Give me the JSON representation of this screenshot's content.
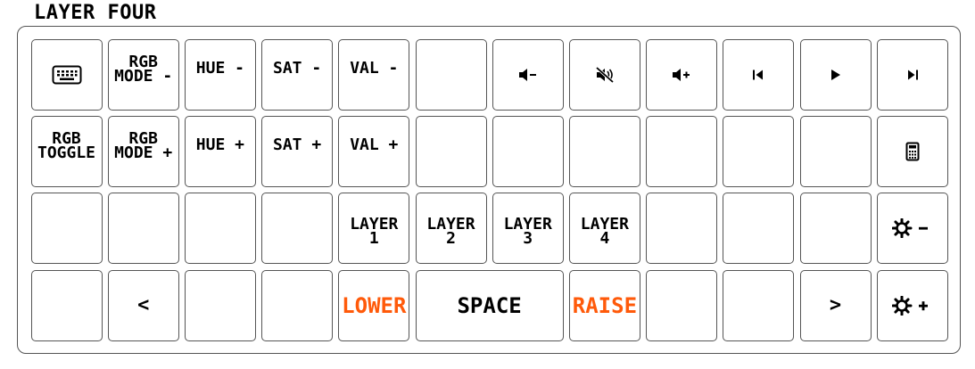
{
  "title": "LAYER FOUR",
  "colors": {
    "accent": "#ff5a0a",
    "border": "#555555"
  },
  "rows": [
    [
      {
        "name": "key-keyboard",
        "icon": "keyboard-icon"
      },
      {
        "name": "key-rgb-mode-minus",
        "label": "RGB\nMODE -",
        "style": "stack"
      },
      {
        "name": "key-hue-minus",
        "label": "HUE -",
        "style": "tl"
      },
      {
        "name": "key-sat-minus",
        "label": "SAT -",
        "style": "tl"
      },
      {
        "name": "key-val-minus",
        "label": "VAL -",
        "style": "tl"
      },
      {
        "name": "key-blank"
      },
      {
        "name": "key-volume-down",
        "icon": "volume-down-icon"
      },
      {
        "name": "key-mute",
        "icon": "mute-icon"
      },
      {
        "name": "key-volume-up",
        "icon": "volume-up-icon"
      },
      {
        "name": "key-previous-track",
        "icon": "previous-track-icon"
      },
      {
        "name": "key-play",
        "icon": "play-icon"
      },
      {
        "name": "key-next-track",
        "icon": "next-track-icon"
      }
    ],
    [
      {
        "name": "key-rgb-toggle",
        "label": "RGB\nTOGGLE",
        "style": "stack"
      },
      {
        "name": "key-rgb-mode-plus",
        "label": "RGB\nMODE +",
        "style": "stack"
      },
      {
        "name": "key-hue-plus",
        "label": "HUE +",
        "style": "tl"
      },
      {
        "name": "key-sat-plus",
        "label": "SAT +",
        "style": "tl"
      },
      {
        "name": "key-val-plus",
        "label": "VAL +",
        "style": "tl"
      },
      {
        "name": "key-blank"
      },
      {
        "name": "key-blank"
      },
      {
        "name": "key-blank"
      },
      {
        "name": "key-blank"
      },
      {
        "name": "key-blank"
      },
      {
        "name": "key-blank"
      },
      {
        "name": "key-calculator",
        "icon": "calculator-icon"
      }
    ],
    [
      {
        "name": "key-blank"
      },
      {
        "name": "key-blank"
      },
      {
        "name": "key-blank"
      },
      {
        "name": "key-blank"
      },
      {
        "name": "key-layer-1",
        "label": "LAYER\n1",
        "style": "stack"
      },
      {
        "name": "key-layer-2",
        "label": "LAYER\n2",
        "style": "stack"
      },
      {
        "name": "key-layer-3",
        "label": "LAYER\n3",
        "style": "stack"
      },
      {
        "name": "key-layer-4",
        "label": "LAYER\n4",
        "style": "stack"
      },
      {
        "name": "key-blank"
      },
      {
        "name": "key-blank"
      },
      {
        "name": "key-blank"
      },
      {
        "name": "key-brightness-down",
        "icon": "brightness-down-icon"
      }
    ],
    [
      {
        "name": "key-blank"
      },
      {
        "name": "key-less-than",
        "label": "<",
        "style": "center"
      },
      {
        "name": "key-blank"
      },
      {
        "name": "key-blank"
      },
      {
        "name": "key-lower",
        "label": "LOWER",
        "style": "big",
        "accent": true
      },
      {
        "name": "key-space",
        "label": "SPACE",
        "style": "big",
        "span": 2
      },
      {
        "name": "key-raise",
        "label": "RAISE",
        "style": "big",
        "accent": true
      },
      {
        "name": "key-blank"
      },
      {
        "name": "key-blank"
      },
      {
        "name": "key-greater-than",
        "label": ">",
        "style": "center"
      },
      {
        "name": "key-brightness-up",
        "icon": "brightness-up-icon"
      }
    ]
  ]
}
